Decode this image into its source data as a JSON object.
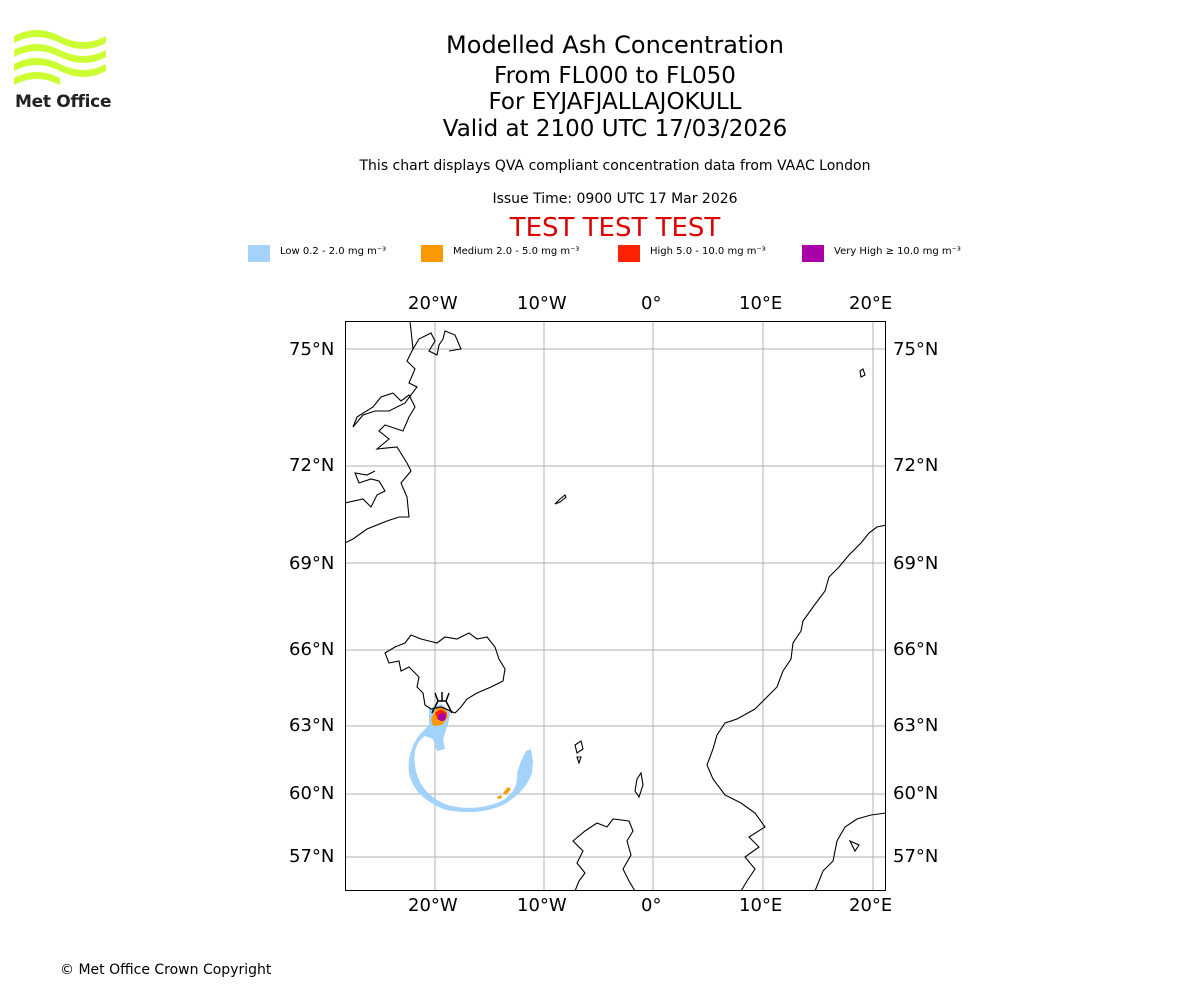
{
  "logo": {
    "text": "Met Office"
  },
  "header": {
    "title": "Modelled Ash Concentration",
    "line2": "From FL000 to FL050",
    "line3": "For EYJAFJALLAJOKULL",
    "line4": "Valid at 2100 UTC 17/03/2026",
    "subtitle": "This chart displays QVA compliant concentration data from VAAC London",
    "issue_time": "Issue Time: 0900 UTC 17 Mar 2026",
    "test_banner": "TEST TEST TEST"
  },
  "colors": {
    "low": "#a3d2fb",
    "medium": "#ff9900",
    "high": "#ff2200",
    "very_high": "#aa00aa",
    "test_banner": "#dd0000",
    "logo": "#ccff33"
  },
  "legend": [
    {
      "key": "low",
      "label": "Low 0.2 - 2.0 mg m⁻³"
    },
    {
      "key": "medium",
      "label": "Medium 2.0 - 5.0 mg m⁻³"
    },
    {
      "key": "high",
      "label": "High 5.0 - 10.0 mg m⁻³"
    },
    {
      "key": "very_high",
      "label": "Very High  ≥  10.0 mg m⁻³"
    }
  ],
  "map": {
    "lon_ticks": [
      "20°W",
      "10°W",
      "0°",
      "10°E",
      "20°E"
    ],
    "lat_ticks": [
      "75°N",
      "72°N",
      "69°N",
      "66°N",
      "63°N",
      "60°N",
      "57°N"
    ],
    "volcano_icon": "volcano-icon"
  },
  "footer": {
    "copyright": "© Met Office Crown Copyright"
  }
}
